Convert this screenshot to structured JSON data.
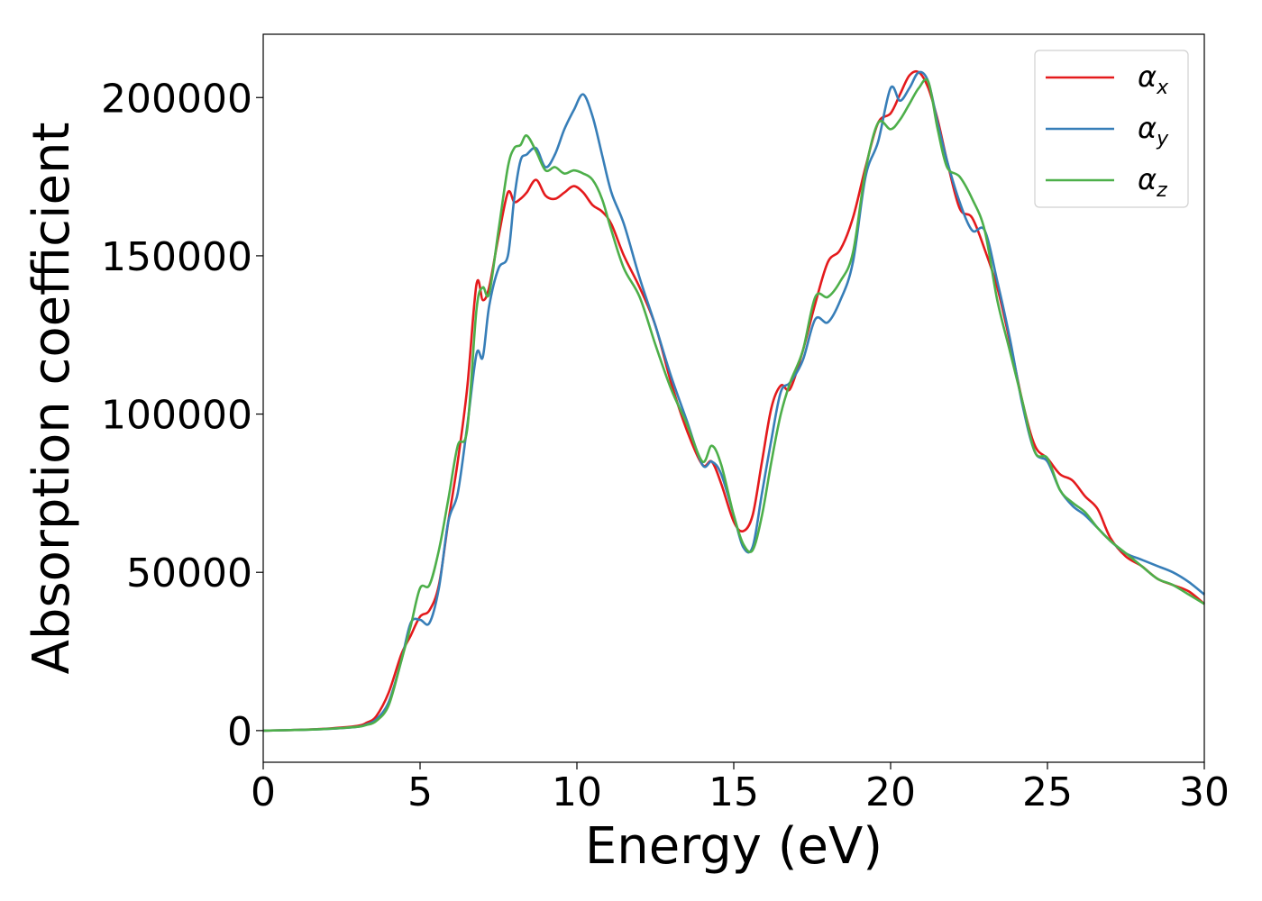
{
  "chart_data": {
    "type": "line",
    "xlabel": "Energy (eV)",
    "ylabel": "Absorption coefficient",
    "xlim": [
      0,
      30
    ],
    "ylim": [
      -10000,
      220000
    ],
    "xticks": [
      0,
      5,
      10,
      15,
      20,
      25,
      30
    ],
    "xtick_labels": [
      "0",
      "5",
      "10",
      "15",
      "20",
      "25",
      "30"
    ],
    "yticks": [
      0,
      50000,
      100000,
      150000,
      200000
    ],
    "ytick_labels": [
      "0",
      "50000",
      "100000",
      "150000",
      "200000"
    ],
    "grid": false,
    "legend_position": "top-right",
    "series": [
      {
        "name": "α",
        "subscript": "x",
        "color": "#e41a1c",
        "x": [
          0,
          1,
          2,
          3,
          3.3,
          3.6,
          4.0,
          4.4,
          4.7,
          5.0,
          5.3,
          5.6,
          5.9,
          6.2,
          6.5,
          6.8,
          7.0,
          7.2,
          7.5,
          7.8,
          8.0,
          8.2,
          8.4,
          8.7,
          9.0,
          9.3,
          9.6,
          9.9,
          10.2,
          10.5,
          10.8,
          11.1,
          11.5,
          12.0,
          12.5,
          13.0,
          13.5,
          14.0,
          14.3,
          14.6,
          15.0,
          15.3,
          15.6,
          15.9,
          16.2,
          16.5,
          16.8,
          17.2,
          17.6,
          18.0,
          18.4,
          18.8,
          19.2,
          19.6,
          20.0,
          20.3,
          20.6,
          20.9,
          21.2,
          21.5,
          21.8,
          22.2,
          22.6,
          23.0,
          23.4,
          23.8,
          24.2,
          24.6,
          25.0,
          25.4,
          25.8,
          26.2,
          26.6,
          27.0,
          27.5,
          28.0,
          28.5,
          29.0,
          29.5,
          30.0
        ],
        "y": [
          0,
          200,
          600,
          1500,
          2500,
          4500,
          12000,
          24000,
          30000,
          36000,
          38000,
          46000,
          66000,
          85000,
          108000,
          141000,
          136000,
          140000,
          156000,
          170000,
          167000,
          168000,
          170000,
          174000,
          169000,
          168000,
          170000,
          172000,
          170000,
          166000,
          164000,
          160000,
          150000,
          140000,
          128000,
          110000,
          95000,
          84000,
          85000,
          78000,
          66000,
          63000,
          68000,
          85000,
          102000,
          109000,
          108000,
          120000,
          135000,
          148000,
          152000,
          162000,
          178000,
          192000,
          195000,
          201000,
          207000,
          208000,
          203000,
          193000,
          180000,
          165000,
          162000,
          152000,
          140000,
          123000,
          104000,
          90000,
          86000,
          81000,
          79000,
          74000,
          70000,
          61000,
          55000,
          52000,
          48000,
          46000,
          44000,
          40000
        ]
      },
      {
        "name": "α",
        "subscript": "y",
        "color": "#377eb8",
        "x": [
          0,
          1,
          2,
          3,
          3.3,
          3.6,
          4.0,
          4.4,
          4.7,
          5.0,
          5.3,
          5.6,
          5.9,
          6.2,
          6.5,
          6.8,
          7.0,
          7.2,
          7.5,
          7.8,
          8.0,
          8.2,
          8.4,
          8.7,
          9.0,
          9.3,
          9.6,
          9.9,
          10.2,
          10.5,
          10.8,
          11.1,
          11.5,
          12.0,
          12.5,
          13.0,
          13.5,
          14.0,
          14.3,
          14.6,
          15.0,
          15.3,
          15.6,
          15.9,
          16.2,
          16.5,
          16.8,
          17.2,
          17.6,
          18.0,
          18.4,
          18.8,
          19.2,
          19.6,
          20.0,
          20.3,
          20.6,
          20.9,
          21.2,
          21.5,
          21.8,
          22.2,
          22.6,
          23.0,
          23.4,
          23.8,
          24.2,
          24.6,
          25.0,
          25.4,
          25.8,
          26.2,
          26.6,
          27.0,
          27.5,
          28.0,
          28.5,
          29.0,
          29.5,
          30.0
        ],
        "y": [
          0,
          200,
          500,
          1200,
          2000,
          3500,
          9000,
          22000,
          34000,
          35000,
          34000,
          45000,
          66000,
          75000,
          96000,
          119000,
          118000,
          134000,
          146000,
          150000,
          168000,
          180000,
          182000,
          184000,
          178000,
          182000,
          190000,
          196000,
          201000,
          194000,
          182000,
          170000,
          160000,
          143000,
          128000,
          112000,
          98000,
          84000,
          85000,
          81000,
          68000,
          58000,
          58000,
          75000,
          92000,
          107000,
          110000,
          117000,
          130000,
          129000,
          136000,
          148000,
          175000,
          186000,
          203000,
          199000,
          203000,
          208000,
          205000,
          192000,
          180000,
          167000,
          158000,
          158000,
          142000,
          124000,
          103000,
          88000,
          85000,
          76000,
          71000,
          68000,
          64000,
          60000,
          56000,
          54000,
          52000,
          50000,
          47000,
          43000
        ]
      },
      {
        "name": "α",
        "subscript": "z",
        "color": "#4daf4a",
        "x": [
          0,
          1,
          2,
          3,
          3.3,
          3.6,
          4.0,
          4.4,
          4.7,
          5.0,
          5.3,
          5.6,
          5.9,
          6.2,
          6.5,
          6.8,
          7.0,
          7.2,
          7.5,
          7.8,
          8.0,
          8.2,
          8.4,
          8.7,
          9.0,
          9.3,
          9.6,
          9.9,
          10.2,
          10.5,
          10.8,
          11.1,
          11.5,
          12.0,
          12.5,
          13.0,
          13.5,
          14.0,
          14.3,
          14.6,
          15.0,
          15.3,
          15.6,
          15.9,
          16.2,
          16.5,
          16.8,
          17.2,
          17.6,
          18.0,
          18.4,
          18.8,
          19.2,
          19.6,
          20.0,
          20.3,
          20.6,
          20.9,
          21.2,
          21.5,
          21.8,
          22.2,
          22.6,
          23.0,
          23.4,
          23.8,
          24.2,
          24.6,
          25.0,
          25.4,
          25.8,
          26.2,
          26.6,
          27.0,
          27.5,
          28.0,
          28.5,
          29.0,
          29.5,
          30.0
        ],
        "y": [
          0,
          200,
          500,
          1200,
          1800,
          3000,
          8000,
          22000,
          33000,
          45000,
          46000,
          57000,
          73000,
          90000,
          95000,
          133000,
          140000,
          138000,
          158000,
          178000,
          184000,
          185000,
          188000,
          183000,
          177000,
          178000,
          176000,
          177000,
          176000,
          174000,
          168000,
          158000,
          146000,
          137000,
          122000,
          108000,
          97000,
          85000,
          90000,
          84000,
          68000,
          59000,
          57000,
          68000,
          85000,
          100000,
          110000,
          120000,
          137000,
          137000,
          142000,
          151000,
          177000,
          192000,
          190000,
          193000,
          198000,
          203000,
          205000,
          190000,
          178000,
          175000,
          168000,
          158000,
          136000,
          120000,
          104000,
          88000,
          86000,
          76000,
          72000,
          69000,
          64000,
          60000,
          56000,
          52000,
          48000,
          46000,
          43000,
          40000
        ]
      }
    ]
  }
}
